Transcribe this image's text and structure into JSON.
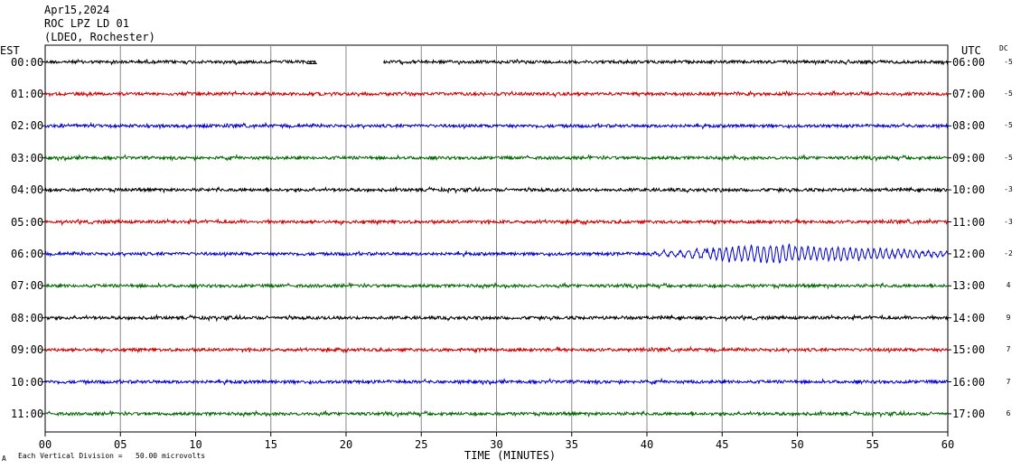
{
  "header": {
    "date": "Apr15,2024",
    "station": "ROC LPZ LD 01",
    "network": "(LDEO, Rochester)"
  },
  "left_axis_title": "EST",
  "right_axis_title": "UTC",
  "dc_title": "DC",
  "footer": {
    "scale_marker": "A",
    "scale_note": "Each Vertical Division =   50.00 microvolts"
  },
  "chart_data": {
    "type": "line",
    "xlabel": "TIME (MINUTES)",
    "x_ticks": [
      "00",
      "05",
      "10",
      "15",
      "20",
      "25",
      "30",
      "35",
      "40",
      "45",
      "50",
      "55",
      "60"
    ],
    "xlim": [
      0,
      60
    ],
    "grid": true,
    "colors": [
      "#000000",
      "#cc0000",
      "#0000cc",
      "#006600"
    ],
    "traces": [
      {
        "est": "00:00",
        "utc": "06:00",
        "dc": "-5",
        "color": "#000000",
        "gap": [
          18,
          22.5
        ]
      },
      {
        "est": "01:00",
        "utc": "07:00",
        "dc": "-5",
        "color": "#cc0000"
      },
      {
        "est": "02:00",
        "utc": "08:00",
        "dc": "-5",
        "color": "#0000cc"
      },
      {
        "est": "03:00",
        "utc": "09:00",
        "dc": "-5",
        "color": "#006600"
      },
      {
        "est": "04:00",
        "utc": "10:00",
        "dc": "-3",
        "color": "#000000"
      },
      {
        "est": "05:00",
        "utc": "11:00",
        "dc": "-3",
        "color": "#cc0000"
      },
      {
        "est": "06:00",
        "utc": "12:00",
        "dc": "-2",
        "color": "#0000cc",
        "event": {
          "start": 40,
          "peak": 48,
          "end": 60
        }
      },
      {
        "est": "07:00",
        "utc": "13:00",
        "dc": "4",
        "color": "#006600"
      },
      {
        "est": "08:00",
        "utc": "14:00",
        "dc": "9",
        "color": "#000000"
      },
      {
        "est": "09:00",
        "utc": "15:00",
        "dc": "7",
        "color": "#cc0000"
      },
      {
        "est": "10:00",
        "utc": "16:00",
        "dc": "7",
        "color": "#0000cc"
      },
      {
        "est": "11:00",
        "utc": "17:00",
        "dc": "6",
        "color": "#006600"
      }
    ]
  }
}
